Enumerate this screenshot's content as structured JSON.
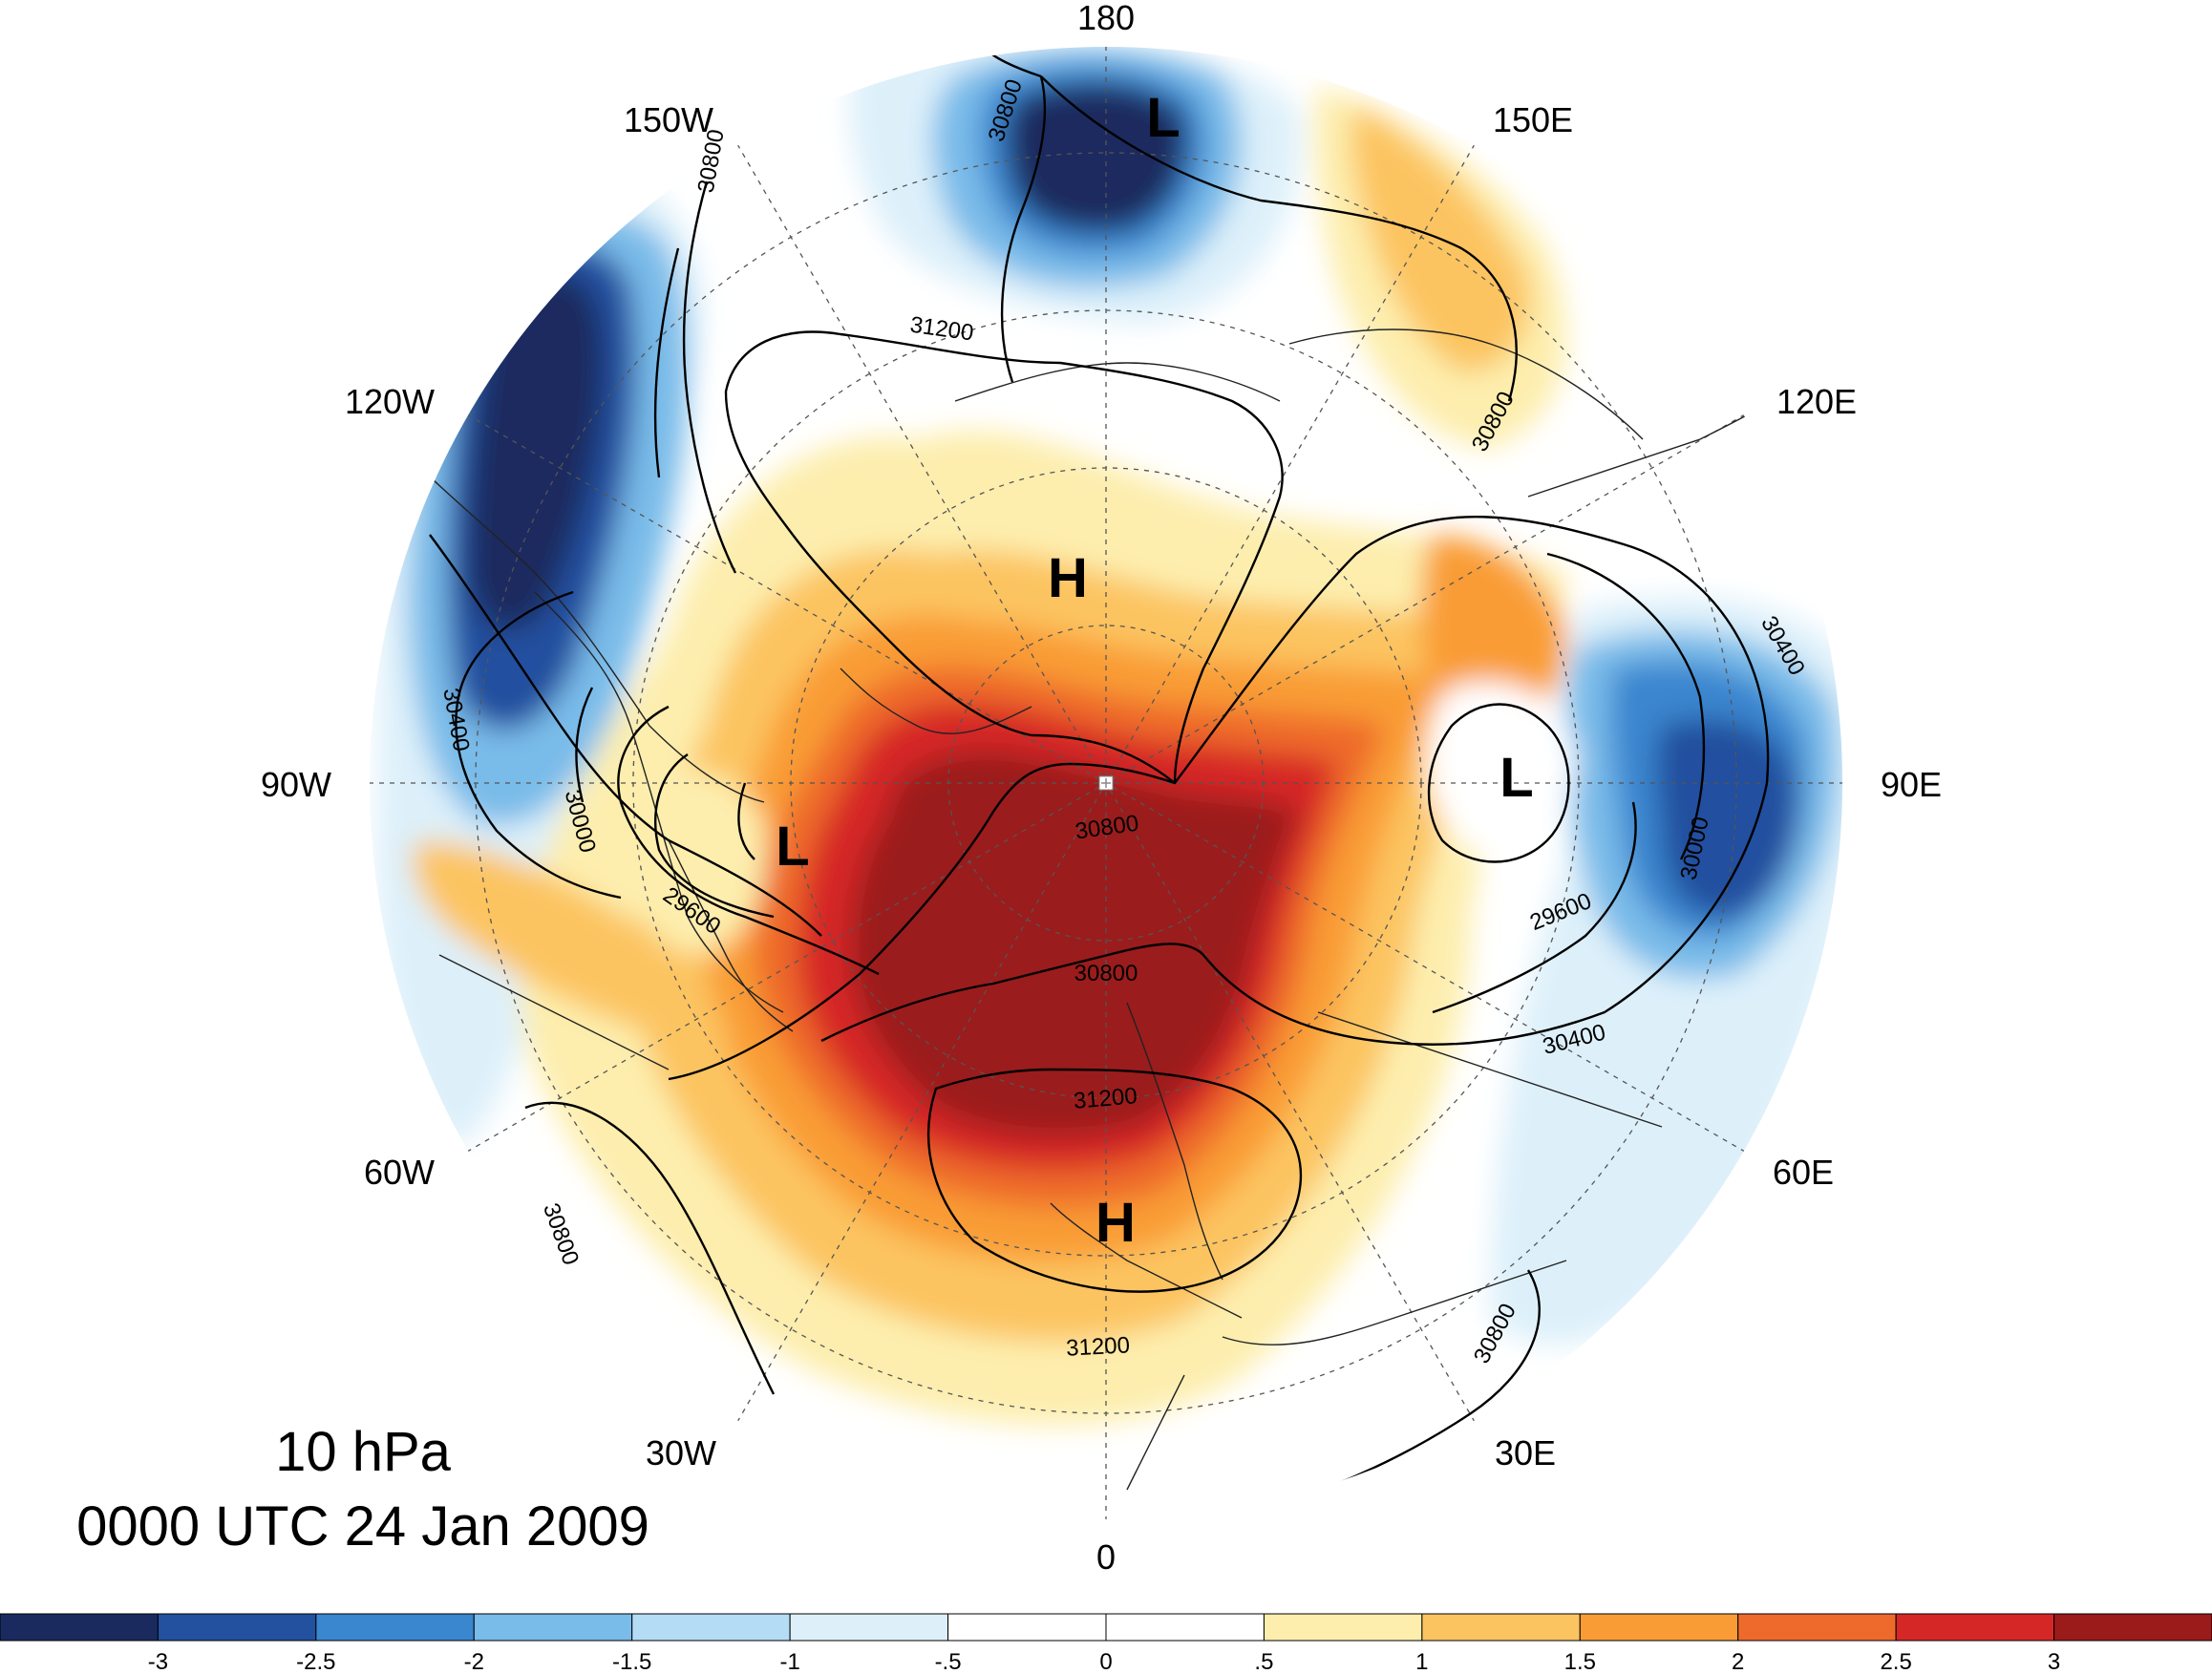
{
  "meridian_labels": [
    {
      "id": "180",
      "text": "180"
    },
    {
      "id": "150W",
      "text": "150W"
    },
    {
      "id": "150E",
      "text": "150E"
    },
    {
      "id": "120W",
      "text": "120W"
    },
    {
      "id": "120E",
      "text": "120E"
    },
    {
      "id": "90W",
      "text": "90W"
    },
    {
      "id": "90E",
      "text": "90E"
    },
    {
      "id": "60W",
      "text": "60W"
    },
    {
      "id": "60E",
      "text": "60E"
    },
    {
      "id": "30W",
      "text": "30W"
    },
    {
      "id": "30E",
      "text": "30E"
    },
    {
      "id": "0",
      "text": "0"
    }
  ],
  "pressure_centers": {
    "low_north": "L",
    "low_east": "L",
    "low_west": "L",
    "high_pole": "H",
    "high_europe": "H"
  },
  "contour_labels": {
    "c1": "30800",
    "c2": "30800",
    "c3": "31200",
    "c4": "30800",
    "c5": "30400",
    "c6": "30000",
    "c7": "29600",
    "c8": "30800",
    "c9": "30400",
    "c10": "30000",
    "c11": "29600",
    "c12": "30400",
    "c13": "30800",
    "c14": "31200",
    "c15": "31200",
    "c16": "30800",
    "c17": "30800"
  },
  "caption": {
    "level": "10 hPa",
    "time": "0000 UTC 24 Jan 2009"
  },
  "colorbar": {
    "colors": [
      "#1a2a5e",
      "#23509f",
      "#3a86cf",
      "#79bbe9",
      "#b4dcf5",
      "#ddf0fa",
      "#ffffff",
      "#ffffff",
      "#fdeeae",
      "#fcc460",
      "#f99c36",
      "#ee6a2c",
      "#d62727",
      "#9b1a1a"
    ],
    "tick_labels": [
      "-3",
      "-2.5",
      "-2",
      "-1.5",
      "-1",
      "-.5",
      "0",
      ".5",
      "1",
      "1.5",
      "2",
      "2.5",
      "3"
    ]
  }
}
